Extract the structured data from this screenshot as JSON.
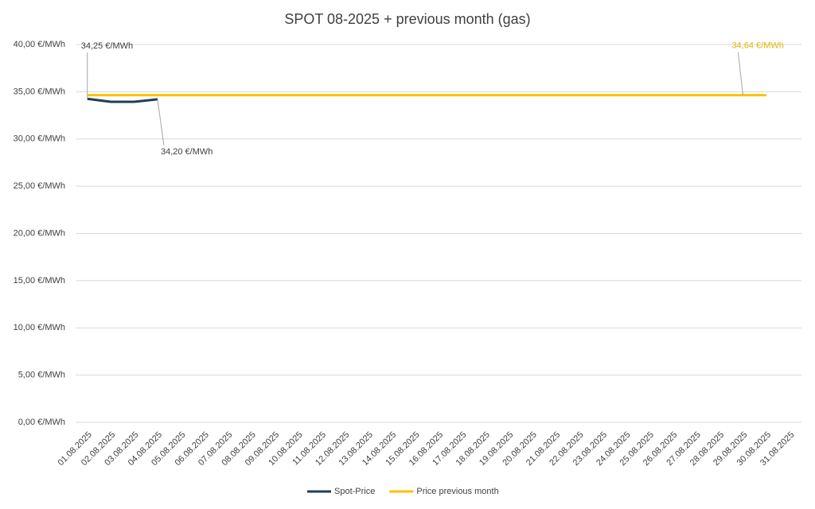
{
  "chart_data": {
    "type": "line",
    "title": "SPOT 08-2025 + previous month (gas)",
    "categories": [
      "01.08.2025",
      "02.08.2025",
      "03.08.2025",
      "04.08.2025",
      "05.08.2025",
      "06.08.2025",
      "07.08.2025",
      "08.08.2025",
      "09.08.2025",
      "10.08.2025",
      "11.08.2025",
      "12.08.2025",
      "13.08.2025",
      "14.08.2025",
      "15.08.2025",
      "16.08.2025",
      "17.08.2025",
      "18.08.2025",
      "19.08.2025",
      "20.08.2025",
      "21.08.2025",
      "22.08.2025",
      "23.08.2025",
      "24.08.2025",
      "25.08.2025",
      "26.08.2025",
      "27.08.2025",
      "28.08.2025",
      "29.08.2025",
      "30.08.2025",
      "31.08.2025"
    ],
    "series": [
      {
        "name": "Spot-Price",
        "color": "#1b3f5c",
        "values": [
          34.25,
          33.94,
          33.94,
          34.2,
          null,
          null,
          null,
          null,
          null,
          null,
          null,
          null,
          null,
          null,
          null,
          null,
          null,
          null,
          null,
          null,
          null,
          null,
          null,
          null,
          null,
          null,
          null,
          null,
          null,
          null,
          null
        ],
        "value_labels": [
          "34,25 €/MWh",
          null,
          null,
          "34,20 €/MWh",
          null,
          null,
          null,
          null,
          null,
          null,
          null,
          null,
          null,
          null,
          null,
          null,
          null,
          null,
          null,
          null,
          null,
          null,
          null,
          null,
          null,
          null,
          null,
          null,
          null,
          null,
          null
        ]
      },
      {
        "name": "Price previous month",
        "color": "#ffc000",
        "values": [
          34.64,
          34.64,
          34.64,
          34.64,
          34.64,
          34.64,
          34.64,
          34.64,
          34.64,
          34.64,
          34.64,
          34.64,
          34.64,
          34.64,
          34.64,
          34.64,
          34.64,
          34.64,
          34.64,
          34.64,
          34.64,
          34.64,
          34.64,
          34.64,
          34.64,
          34.64,
          34.64,
          34.64,
          34.64,
          34.64,
          null
        ],
        "value_labels": [
          null,
          null,
          null,
          null,
          null,
          null,
          null,
          null,
          null,
          null,
          null,
          null,
          null,
          null,
          null,
          null,
          null,
          null,
          null,
          null,
          null,
          null,
          null,
          null,
          null,
          null,
          null,
          null,
          "34,64 €/MWh",
          null,
          null
        ]
      }
    ],
    "ylim": [
      0,
      40
    ],
    "yticks": [
      {
        "value": 0,
        "label": "0,00 €/MWh"
      },
      {
        "value": 5,
        "label": "5,00 €/MWh"
      },
      {
        "value": 10,
        "label": "10,00 €/MWh"
      },
      {
        "value": 15,
        "label": "15,00 €/MWh"
      },
      {
        "value": 20,
        "label": "20,00 €/MWh"
      },
      {
        "value": 25,
        "label": "25,00 €/MWh"
      },
      {
        "value": 30,
        "label": "30,00 €/MWh"
      },
      {
        "value": 35,
        "label": "35,00 €/MWh"
      },
      {
        "value": 40,
        "label": "40,00 €/MWh"
      }
    ],
    "grid": true,
    "legend": "bottom"
  }
}
